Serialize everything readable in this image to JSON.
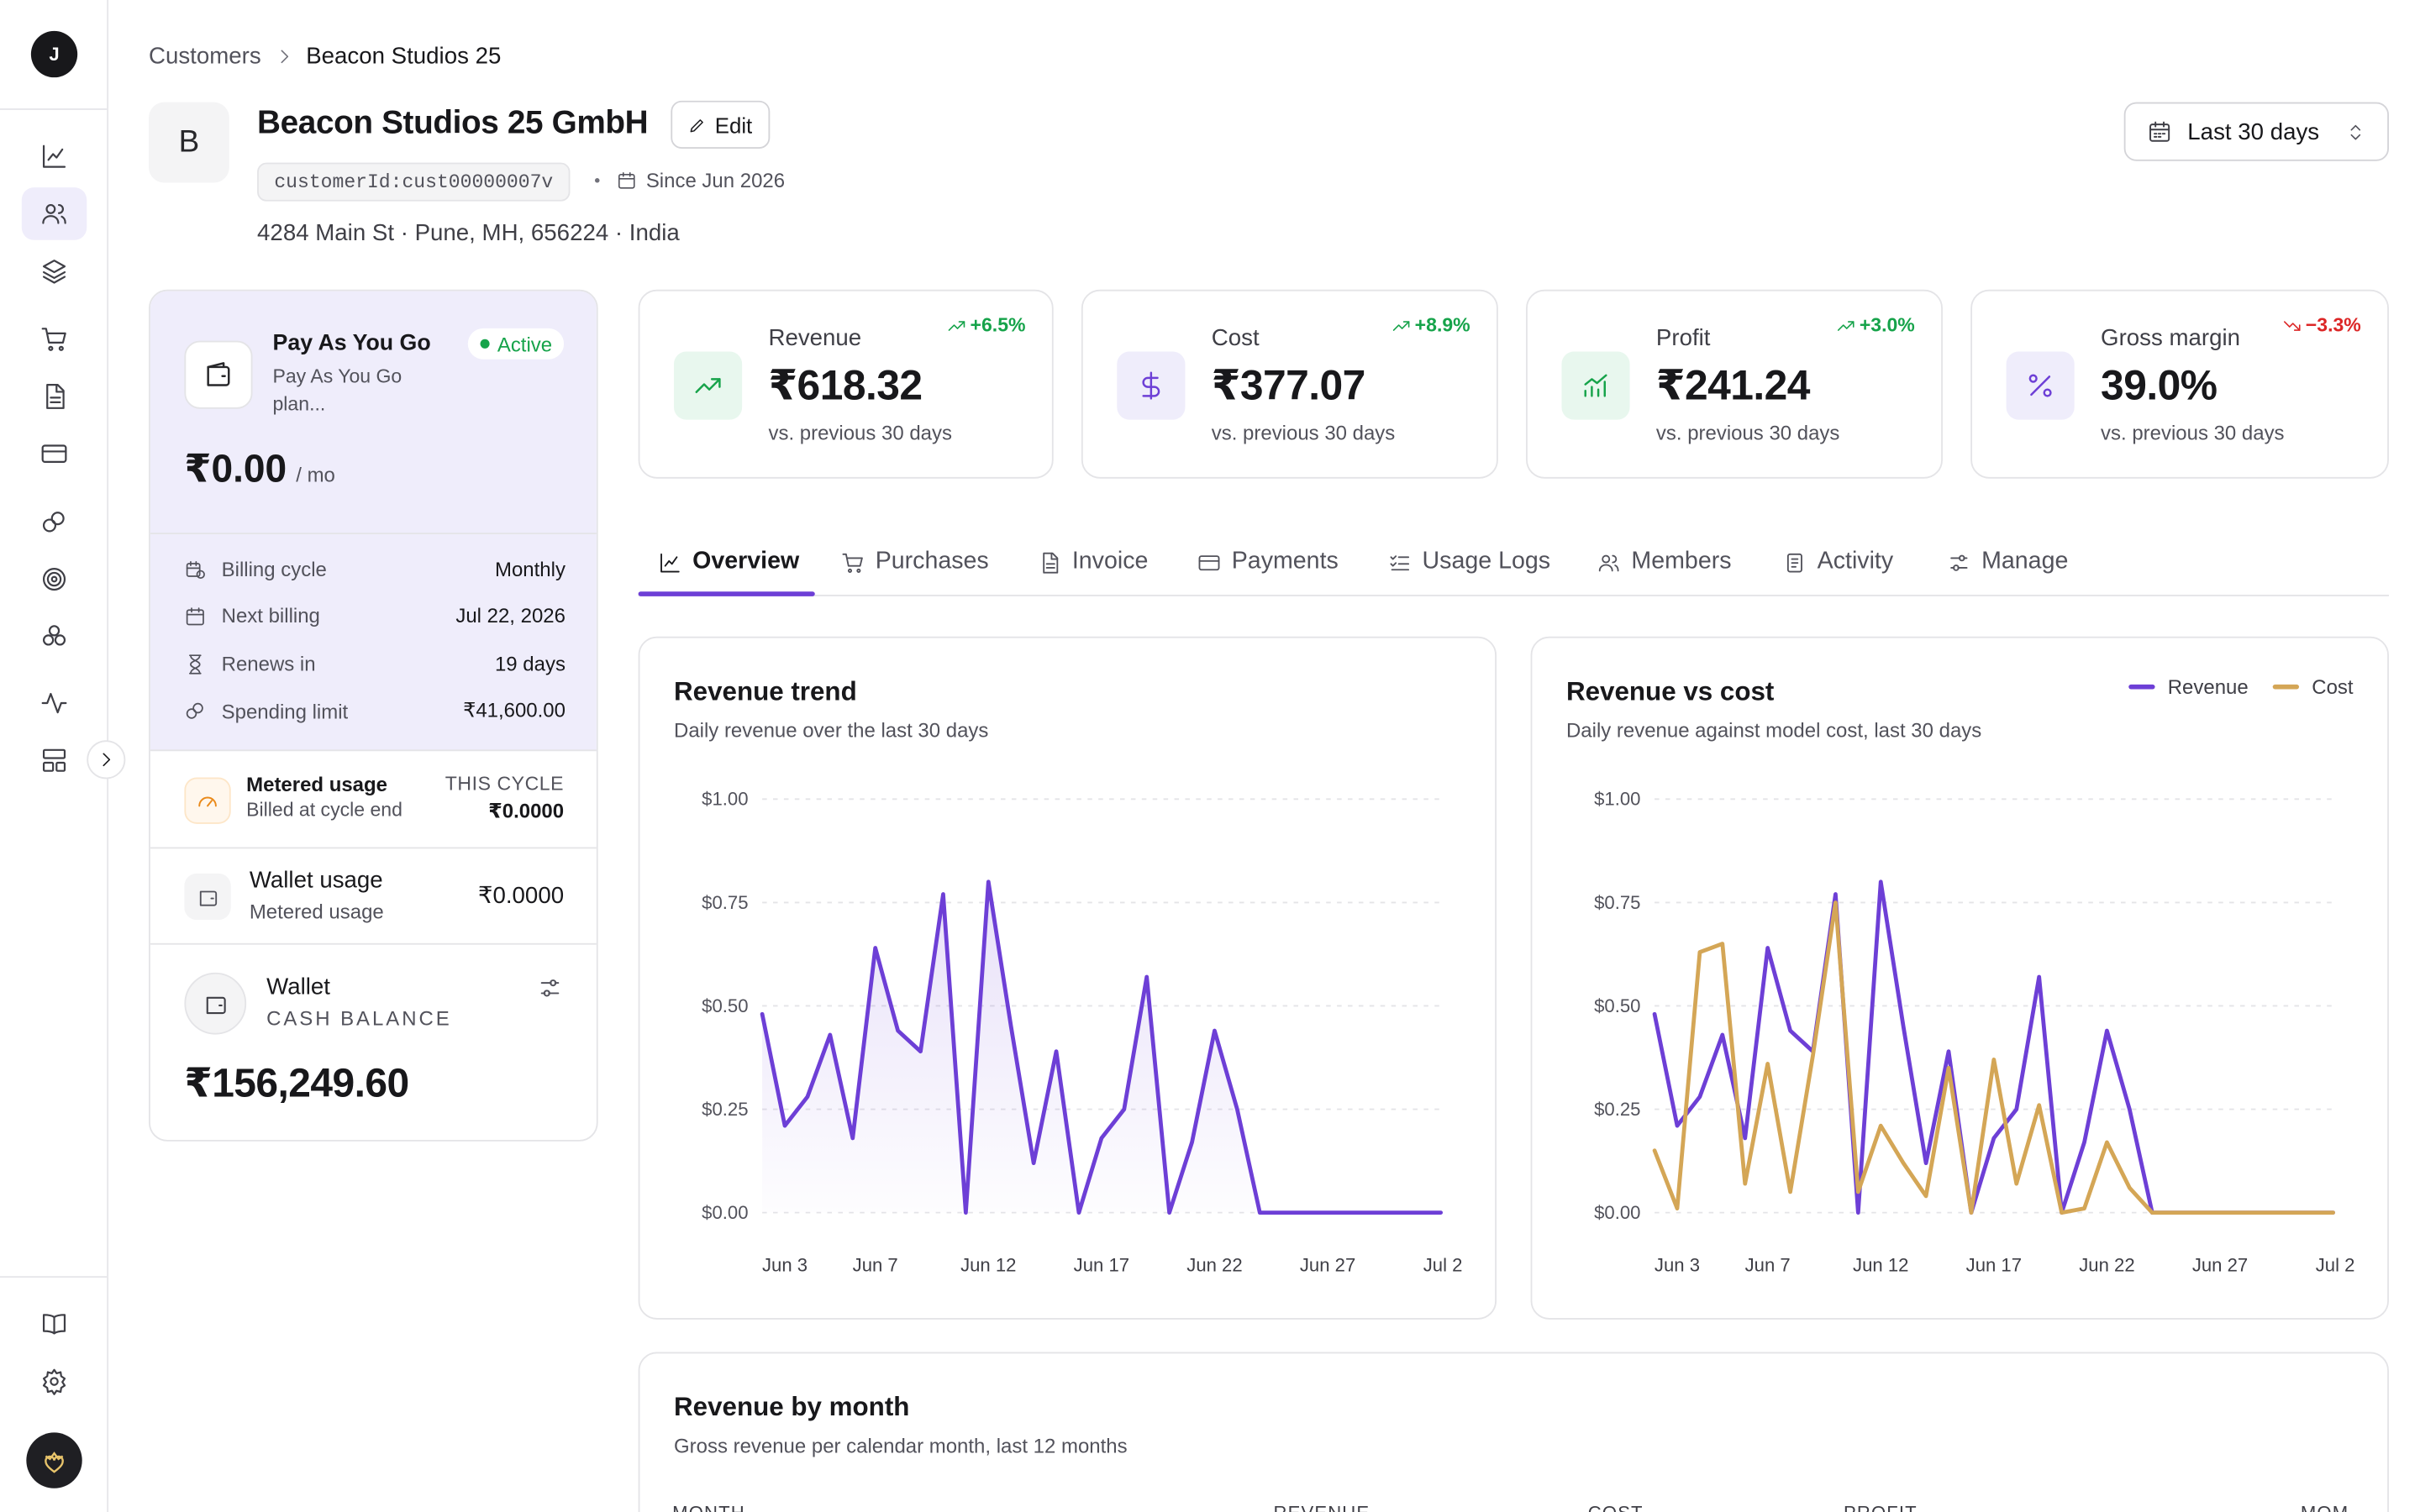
{
  "user_initial": "J",
  "breadcrumb": {
    "parent": "Customers",
    "current": "Beacon Studios 25"
  },
  "customer": {
    "avatar_letter": "B",
    "name": "Beacon Studios 25 GmbH",
    "edit_label": "Edit",
    "id_chip": "customerId:cust00000007v",
    "since": "Since Jun 2026",
    "address": "4284 Main St · Pune, MH, 656224 · India"
  },
  "date_range": "Last 30 days",
  "plan": {
    "name": "Pay As You Go",
    "status": "Active",
    "description": "Pay As You Go plan...",
    "price": "₹0.00",
    "period": "/ mo",
    "rows": [
      {
        "label": "Billing cycle",
        "value": "Monthly",
        "icon": "calendar-clock-icon"
      },
      {
        "label": "Next billing",
        "value": "Jul 22, 2026",
        "icon": "calendar-icon"
      },
      {
        "label": "Renews in",
        "value": "19 days",
        "icon": "hourglass-icon"
      },
      {
        "label": "Spending limit",
        "value": "₹41,600.00",
        "icon": "coins-icon"
      }
    ],
    "metered": {
      "title": "Metered usage",
      "sub": "Billed at cycle end",
      "cycle_label": "THIS CYCLE",
      "value": "₹0.0000"
    },
    "wallet_usage": {
      "title": "Wallet usage",
      "sub": "Metered usage",
      "value": "₹0.0000"
    },
    "wallet": {
      "title": "Wallet",
      "sub": "CASH BALANCE",
      "value": "₹156,249.60"
    }
  },
  "kpis": [
    {
      "label": "Revenue",
      "value": "₹618.32",
      "delta": "+6.5%",
      "sub": "vs. previous 30 days",
      "color": "#16a34a",
      "icon": "trending-up-icon"
    },
    {
      "label": "Cost",
      "value": "₹377.07",
      "delta": "+8.9%",
      "sub": "vs. previous 30 days",
      "color": "#16a34a",
      "icon": "dollar-icon"
    },
    {
      "label": "Profit",
      "value": "₹241.24",
      "delta": "+3.0%",
      "sub": "vs. previous 30 days",
      "color": "#16a34a",
      "icon": "bar-chart-icon"
    },
    {
      "label": "Gross margin",
      "value": "39.0%",
      "delta": "−3.3%",
      "sub": "vs. previous 30 days",
      "color": "#dc2626",
      "icon": "percent-icon"
    }
  ],
  "tabs": [
    "Overview",
    "Purchases",
    "Invoice",
    "Payments",
    "Usage Logs",
    "Members",
    "Activity",
    "Manage"
  ],
  "charts": {
    "trend": {
      "title": "Revenue trend",
      "subtitle": "Daily revenue over the last 30 days"
    },
    "vs": {
      "title": "Revenue vs cost",
      "subtitle": "Daily revenue against model cost, last 30 days",
      "legend_revenue": "Revenue",
      "legend_cost": "Cost"
    },
    "month": {
      "title": "Revenue by month",
      "subtitle": "Gross revenue per calendar month, last 12 months"
    }
  },
  "table_headers": [
    "MONTH",
    "REVENUE",
    "COST",
    "PROFIT",
    "MOM"
  ],
  "colors": {
    "accent": "#6d3fd6",
    "cost": "#d4a656",
    "plan_bg": "#efedfb",
    "positive": "#16a34a",
    "negative": "#dc2626"
  },
  "chart_data": [
    {
      "type": "area",
      "title": "Revenue trend",
      "x": [
        "Jun 2",
        "Jun 3",
        "Jun 4",
        "Jun 5",
        "Jun 6",
        "Jun 7",
        "Jun 8",
        "Jun 9",
        "Jun 10",
        "Jun 11",
        "Jun 12",
        "Jun 13",
        "Jun 14",
        "Jun 15",
        "Jun 16",
        "Jun 17",
        "Jun 18",
        "Jun 19",
        "Jun 20",
        "Jun 21",
        "Jun 22",
        "Jun 23",
        "Jun 24",
        "Jun 25",
        "Jun 26",
        "Jun 27",
        "Jun 28",
        "Jun 29",
        "Jun 30",
        "Jul 1",
        "Jul 2"
      ],
      "x_tick_labels": [
        "Jun 3",
        "Jun 7",
        "Jun 12",
        "Jun 17",
        "Jun 22",
        "Jun 27",
        "Jul 2"
      ],
      "series": [
        {
          "name": "Revenue",
          "values": [
            0.48,
            0.21,
            0.28,
            0.43,
            0.18,
            0.64,
            0.44,
            0.39,
            0.77,
            0.0,
            0.8,
            0.45,
            0.12,
            0.39,
            0.0,
            0.18,
            0.25,
            0.57,
            0.0,
            0.17,
            0.44,
            0.25,
            0.0,
            0.0,
            0.0,
            0.0,
            0.0,
            0.0,
            0.0,
            0.0,
            0.0
          ]
        }
      ],
      "y_tick_labels": [
        "$0.00",
        "$0.25",
        "$0.50",
        "$0.75",
        "$1.00"
      ],
      "ylim": [
        0,
        1
      ],
      "grid": true
    },
    {
      "type": "line",
      "title": "Revenue vs cost",
      "x": [
        "Jun 2",
        "Jun 3",
        "Jun 4",
        "Jun 5",
        "Jun 6",
        "Jun 7",
        "Jun 8",
        "Jun 9",
        "Jun 10",
        "Jun 11",
        "Jun 12",
        "Jun 13",
        "Jun 14",
        "Jun 15",
        "Jun 16",
        "Jun 17",
        "Jun 18",
        "Jun 19",
        "Jun 20",
        "Jun 21",
        "Jun 22",
        "Jun 23",
        "Jun 24",
        "Jun 25",
        "Jun 26",
        "Jun 27",
        "Jun 28",
        "Jun 29",
        "Jun 30",
        "Jul 1",
        "Jul 2"
      ],
      "x_tick_labels": [
        "Jun 3",
        "Jun 7",
        "Jun 12",
        "Jun 17",
        "Jun 22",
        "Jun 27",
        "Jul 2"
      ],
      "series": [
        {
          "name": "Revenue",
          "values": [
            0.48,
            0.21,
            0.28,
            0.43,
            0.18,
            0.64,
            0.44,
            0.39,
            0.77,
            0.0,
            0.8,
            0.45,
            0.12,
            0.39,
            0.0,
            0.18,
            0.25,
            0.57,
            0.0,
            0.17,
            0.44,
            0.25,
            0.0,
            0.0,
            0.0,
            0.0,
            0.0,
            0.0,
            0.0,
            0.0,
            0.0
          ]
        },
        {
          "name": "Cost",
          "values": [
            0.15,
            0.01,
            0.63,
            0.65,
            0.07,
            0.36,
            0.05,
            0.38,
            0.75,
            0.05,
            0.21,
            0.12,
            0.04,
            0.35,
            0.0,
            0.37,
            0.07,
            0.26,
            0.0,
            0.01,
            0.17,
            0.06,
            0.0,
            0.0,
            0.0,
            0.0,
            0.0,
            0.0,
            0.0,
            0.0,
            0.0
          ]
        }
      ],
      "y_tick_labels": [
        "$0.00",
        "$0.25",
        "$0.50",
        "$0.75",
        "$1.00"
      ],
      "ylim": [
        0,
        1
      ],
      "legend": "top-right",
      "grid": true
    }
  ]
}
